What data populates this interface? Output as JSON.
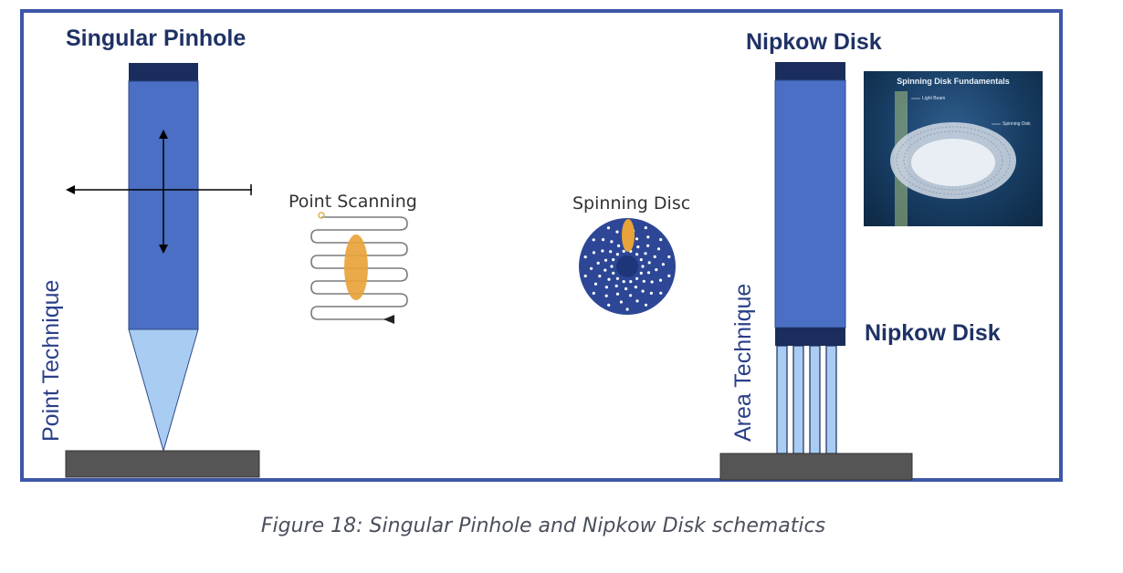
{
  "left_panel": {
    "title": "Singular Pinhole",
    "side_label": "Point Technique"
  },
  "center_panel": {
    "point_scanning_label": "Point Scanning",
    "spinning_disc_label": "Spinning Disc"
  },
  "right_panel": {
    "title": "Nipkow Disk",
    "side_label": "Area Technique",
    "disk_label": "Nipkow Disk",
    "inset": {
      "title": "Spinning Disk Fundamentals",
      "light_beam_label": "Light Beam",
      "disk_label": "Spinning Disk"
    }
  },
  "caption": "Figure 18: Singular Pinhole and Nipkow Disk schematics",
  "colors": {
    "frame_border": "#3d57a8",
    "column_fill": "#4a6fc4",
    "column_cap": "#1a2d5c",
    "cone_fill": "#a9cdf2",
    "stage_fill": "#555555",
    "scan_highlight": "#e8a33a",
    "disc_fill": "#2d4796"
  }
}
